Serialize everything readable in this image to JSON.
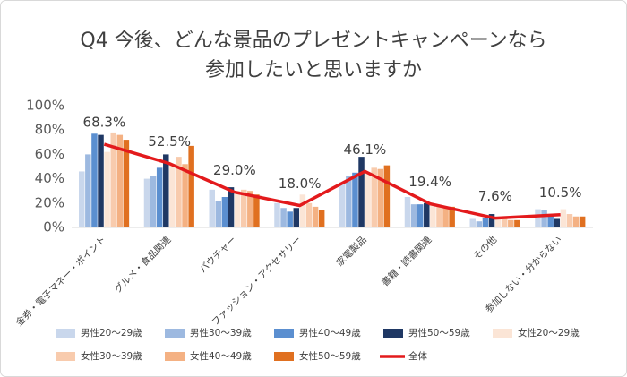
{
  "chart_data": {
    "type": "bar",
    "title": [
      "Q4 今後、どんな景品のプレゼントキャンペーンなら",
      "参加したいと思いますか"
    ],
    "categories": [
      "金券・電子マネー・ポイント",
      "グルメ・食品関連",
      "バウチャー",
      "ファッション・アクセサリー",
      "家電製品",
      "書籍・読書関連",
      "その他",
      "参加しない・分からない"
    ],
    "ylim": [
      0,
      100
    ],
    "yticks": [
      {
        "value": 0,
        "label": "0%"
      },
      {
        "value": 20,
        "label": "20%"
      },
      {
        "value": 40,
        "label": "40%"
      },
      {
        "value": 60,
        "label": "60%"
      },
      {
        "value": 80,
        "label": "80%"
      },
      {
        "value": 100,
        "label": "100%"
      }
    ],
    "grid": false,
    "legend": "bottom",
    "series": [
      {
        "name": "男性20～29歳",
        "color": "#c9d7ec",
        "values": [
          46,
          40,
          31,
          20,
          37,
          25,
          7,
          15
        ]
      },
      {
        "name": "男性30～39歳",
        "color": "#9db9e0",
        "values": [
          60,
          42,
          22,
          16,
          42,
          19,
          5,
          14
        ]
      },
      {
        "name": "男性40～49歳",
        "color": "#5b8fd0",
        "values": [
          77,
          49,
          25,
          13,
          45,
          19,
          8,
          11
        ]
      },
      {
        "name": "男性50～59歳",
        "color": "#1f3864",
        "values": [
          76,
          60,
          33,
          16,
          58,
          20,
          11,
          7
        ]
      },
      {
        "name": "女性20～29歳",
        "color": "#fbe5d6",
        "values": [
          62,
          52,
          30,
          27,
          44,
          18,
          8,
          15
        ]
      },
      {
        "name": "女性30～39歳",
        "color": "#f8cbad",
        "values": [
          78,
          58,
          31,
          20,
          49,
          17,
          7,
          11
        ]
      },
      {
        "name": "女性40～49歳",
        "color": "#f4b183",
        "values": [
          76,
          52,
          30,
          17,
          48,
          16,
          6,
          9
        ]
      },
      {
        "name": "女性50～59歳",
        "color": "#e07020",
        "values": [
          72,
          67,
          27,
          14,
          51,
          17,
          6,
          9
        ]
      },
      {
        "name": "全体",
        "type": "line",
        "color": "#e31a1c",
        "values": [
          68.3,
          52.5,
          29.0,
          18.0,
          46.1,
          19.4,
          7.6,
          10.5
        ],
        "value_labels": [
          "68.3%",
          "52.5%",
          "29.0%",
          "18.0%",
          "46.1%",
          "19.4%",
          "7.6%",
          "10.5%"
        ]
      }
    ]
  }
}
